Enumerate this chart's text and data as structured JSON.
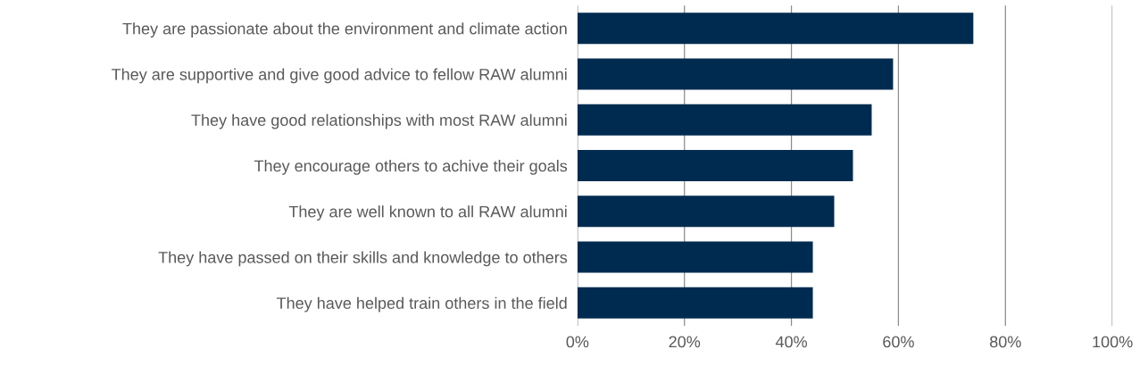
{
  "chart_data": {
    "type": "bar",
    "orientation": "horizontal",
    "categories": [
      "They are passionate about the environment and climate action",
      "They are supportive and give good advice to fellow RAW alumni",
      "They have good relationships with most RAW alumni",
      "They encourage others to achive their goals",
      "They are well known to all RAW alumni",
      "They have passed on their skills and knowledge to others",
      "They have helped train others in the field"
    ],
    "values": [
      74,
      59,
      55,
      51.5,
      48,
      44,
      44
    ],
    "color": "#002b50",
    "xlim": [
      0,
      100
    ],
    "xticks": [
      {
        "value": 0,
        "label": "0%"
      },
      {
        "value": 20,
        "label": "20%"
      },
      {
        "value": 40,
        "label": "40%"
      },
      {
        "value": 60,
        "label": "60%"
      },
      {
        "value": 80,
        "label": "80%"
      },
      {
        "value": 100,
        "label": "100%"
      }
    ],
    "grid": "x"
  }
}
